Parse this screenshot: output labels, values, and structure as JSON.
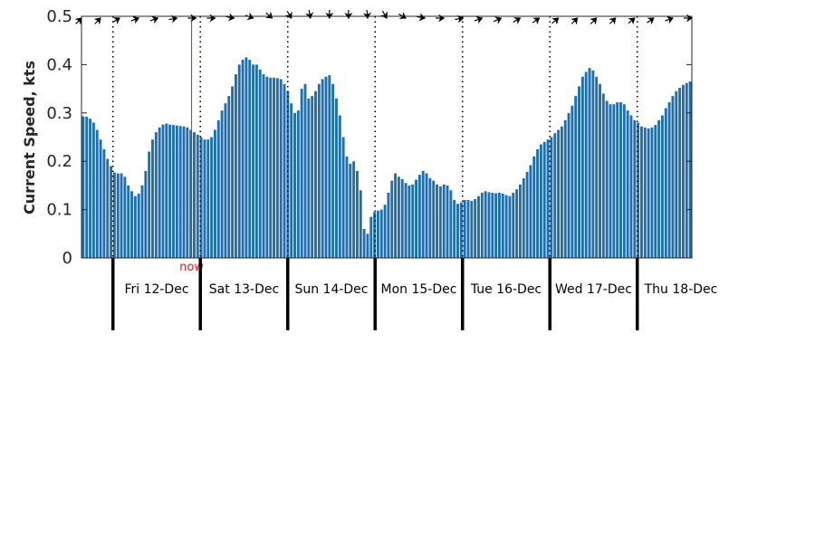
{
  "chart_data": {
    "type": "bar",
    "ylabel": "Current Speed, kts",
    "ylim": [
      0,
      0.5
    ],
    "yticks": [
      0,
      0.1,
      0.2,
      0.3,
      0.4,
      0.5
    ],
    "ytick_labels": [
      "0",
      "0.1",
      "0.2",
      "0.3",
      "0.4",
      "0.5"
    ],
    "grid": false,
    "bar_color": "#1f6fae",
    "now_color": "#e41a1c",
    "now_label": "now",
    "now_day_fraction": 0.9,
    "days": [
      "Fri 12-Dec",
      "Sat 13-Dec",
      "Sun 14-Dec",
      "Mon 15-Dec",
      "Tue 16-Dec",
      "Wed 17-Dec",
      "Thu 18-Dec"
    ],
    "x_start_day_fraction": -0.36,
    "x_end_day_fraction": 6.62,
    "values": [
      0.293,
      0.292,
      0.288,
      0.28,
      0.265,
      0.245,
      0.225,
      0.205,
      0.19,
      0.177,
      0.175,
      0.175,
      0.168,
      0.15,
      0.138,
      0.128,
      0.133,
      0.15,
      0.18,
      0.22,
      0.245,
      0.26,
      0.27,
      0.276,
      0.278,
      0.276,
      0.275,
      0.274,
      0.273,
      0.272,
      0.27,
      0.265,
      0.26,
      0.255,
      0.25,
      0.245,
      0.245,
      0.25,
      0.265,
      0.285,
      0.305,
      0.32,
      0.335,
      0.355,
      0.38,
      0.4,
      0.41,
      0.415,
      0.41,
      0.4,
      0.4,
      0.39,
      0.38,
      0.375,
      0.373,
      0.373,
      0.372,
      0.37,
      0.36,
      0.345,
      0.32,
      0.3,
      0.305,
      0.35,
      0.36,
      0.33,
      0.335,
      0.345,
      0.36,
      0.37,
      0.375,
      0.378,
      0.36,
      0.33,
      0.295,
      0.25,
      0.21,
      0.195,
      0.2,
      0.18,
      0.14,
      0.06,
      0.05,
      0.085,
      0.095,
      0.098,
      0.1,
      0.11,
      0.135,
      0.16,
      0.175,
      0.168,
      0.163,
      0.155,
      0.15,
      0.152,
      0.162,
      0.172,
      0.18,
      0.175,
      0.165,
      0.16,
      0.152,
      0.148,
      0.152,
      0.15,
      0.14,
      0.12,
      0.112,
      0.115,
      0.12,
      0.12,
      0.118,
      0.122,
      0.128,
      0.135,
      0.138,
      0.136,
      0.135,
      0.134,
      0.135,
      0.133,
      0.13,
      0.128,
      0.135,
      0.142,
      0.152,
      0.165,
      0.178,
      0.192,
      0.21,
      0.225,
      0.235,
      0.24,
      0.245,
      0.25,
      0.258,
      0.265,
      0.272,
      0.285,
      0.3,
      0.315,
      0.335,
      0.355,
      0.375,
      0.385,
      0.393,
      0.388,
      0.375,
      0.36,
      0.34,
      0.325,
      0.318,
      0.318,
      0.322,
      0.322,
      0.318,
      0.305,
      0.295,
      0.285,
      0.28,
      0.272,
      0.27,
      0.268,
      0.27,
      0.275,
      0.285,
      0.295,
      0.31,
      0.322,
      0.335,
      0.345,
      0.352,
      0.358,
      0.362,
      0.365
    ],
    "direction_arrows_deg": [
      45,
      45,
      60,
      70,
      70,
      80,
      90,
      90,
      100,
      110,
      130,
      150,
      170,
      180,
      180,
      175,
      150,
      120,
      100,
      90,
      80,
      70,
      65,
      60,
      55,
      50,
      45,
      45,
      45,
      50,
      55,
      70,
      90
    ]
  }
}
